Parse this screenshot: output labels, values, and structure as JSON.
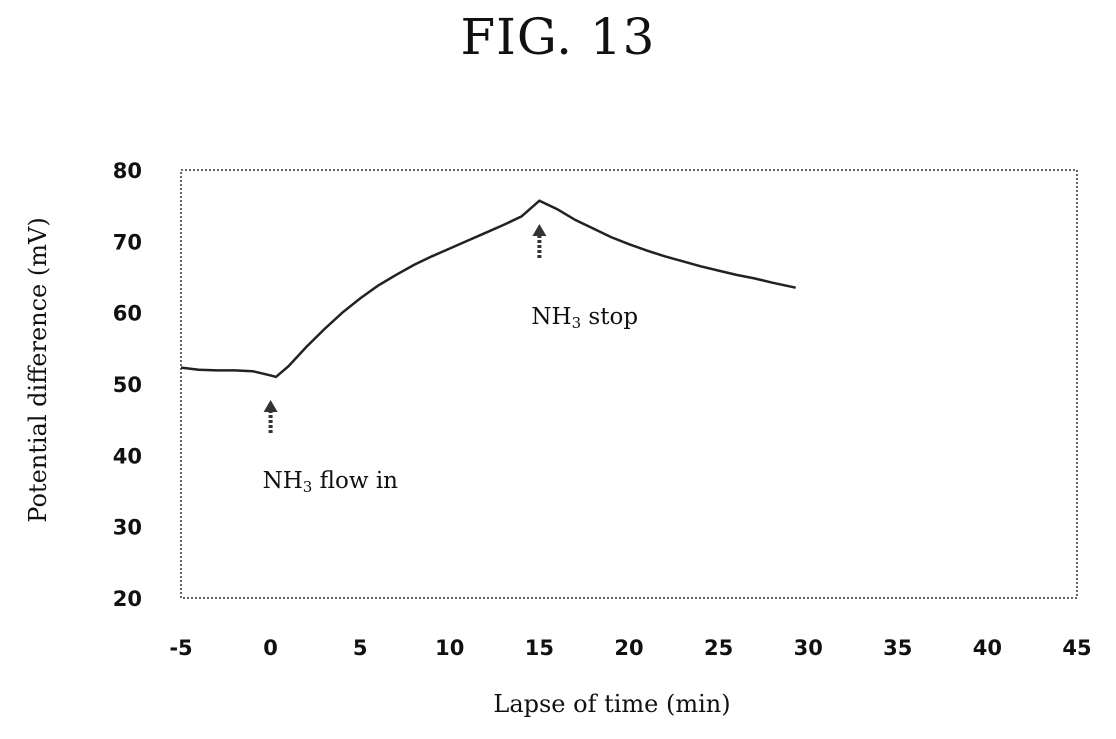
{
  "figure_title": "FIG. 13",
  "chart_data": {
    "type": "line",
    "title": "",
    "xlabel": "Lapse of time (min)",
    "ylabel": "Potential difference (mV)",
    "xlim": [
      -5,
      45
    ],
    "ylim": [
      20,
      80
    ],
    "xticks": [
      -5,
      0,
      5,
      10,
      15,
      20,
      25,
      30,
      35,
      40,
      45
    ],
    "yticks": [
      20,
      30,
      40,
      50,
      60,
      70,
      80
    ],
    "grid": false,
    "series": [
      {
        "x": [
          -5,
          -4,
          -3,
          -2,
          -1,
          0,
          0.3,
          1,
          2,
          3,
          4,
          5,
          6,
          7,
          8,
          9,
          10,
          11,
          12,
          13,
          14,
          15,
          16,
          17,
          18,
          19,
          20,
          21,
          22,
          23,
          24,
          25,
          26,
          27,
          28,
          29.3
        ],
        "y": [
          52.3,
          52.0,
          51.9,
          51.9,
          51.8,
          51.2,
          51.0,
          52.5,
          55.2,
          57.7,
          60.0,
          62.0,
          63.8,
          65.3,
          66.7,
          67.9,
          69.0,
          70.1,
          71.2,
          72.3,
          73.5,
          75.7,
          74.5,
          73.0,
          71.8,
          70.6,
          69.6,
          68.7,
          67.9,
          67.2,
          66.5,
          65.9,
          65.3,
          64.8,
          64.2,
          63.5
        ]
      }
    ],
    "annotations": [
      {
        "text_main": "NH",
        "text_sub": "3",
        "text_rest": " flow in",
        "x": 0
      },
      {
        "text_main": "NH",
        "text_sub": "3",
        "text_rest": " stop",
        "x": 15
      }
    ]
  }
}
